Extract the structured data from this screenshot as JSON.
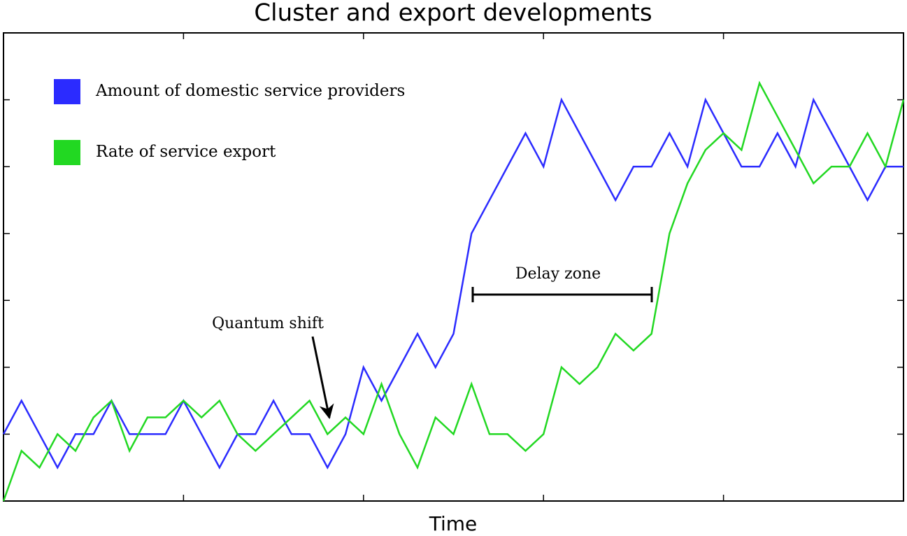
{
  "chart_data": {
    "type": "line",
    "title": "Cluster and export developments",
    "x_label": "Time",
    "x": [
      0,
      1,
      2,
      3,
      4,
      5,
      6,
      7,
      8,
      9,
      10,
      11,
      12,
      13,
      14,
      15,
      16,
      17,
      18,
      19,
      20,
      21,
      22,
      23,
      24,
      25,
      26,
      27,
      28,
      29,
      30,
      31,
      32,
      33,
      34,
      35,
      36,
      37,
      38,
      39,
      40,
      41,
      42,
      43,
      44,
      45,
      46,
      47,
      48,
      49,
      50
    ],
    "xlim": [
      0,
      50
    ],
    "xticks": [
      10,
      20,
      30,
      40
    ],
    "ylim": [
      0,
      14
    ],
    "yticks": [
      2,
      4,
      6,
      8,
      10,
      12
    ],
    "legend": "upper left",
    "series": [
      {
        "name": "Amount of domestic service providers",
        "color": "#2b2bff",
        "values": [
          2,
          3,
          2,
          1,
          2,
          2,
          3,
          2,
          2,
          2,
          3,
          2,
          1,
          2,
          2,
          3,
          2,
          2,
          1,
          2,
          4,
          3,
          4,
          5,
          4,
          5,
          8,
          9,
          10,
          11,
          10,
          12,
          11,
          10,
          9,
          10,
          10,
          11,
          10,
          12,
          11,
          10,
          10,
          11,
          10,
          12,
          11,
          10,
          9,
          10,
          10
        ]
      },
      {
        "name": "Rate of service export",
        "color": "#22d822",
        "values": [
          0,
          1.5,
          1,
          2,
          1.5,
          2.5,
          3,
          1.5,
          2.5,
          2.5,
          3,
          2.5,
          3,
          2,
          1.5,
          2,
          2.5,
          3,
          2,
          2.5,
          2,
          3.5,
          2,
          1,
          2.5,
          2,
          3.5,
          2,
          2,
          1.5,
          2,
          4,
          3.5,
          4,
          5,
          4.5,
          5,
          8,
          9.5,
          10.5,
          11,
          10.5,
          12.5,
          11.5,
          10.5,
          9.5,
          10,
          10,
          11,
          10,
          12
        ]
      }
    ],
    "annotations": [
      "Quantum shift",
      "Delay zone"
    ]
  }
}
